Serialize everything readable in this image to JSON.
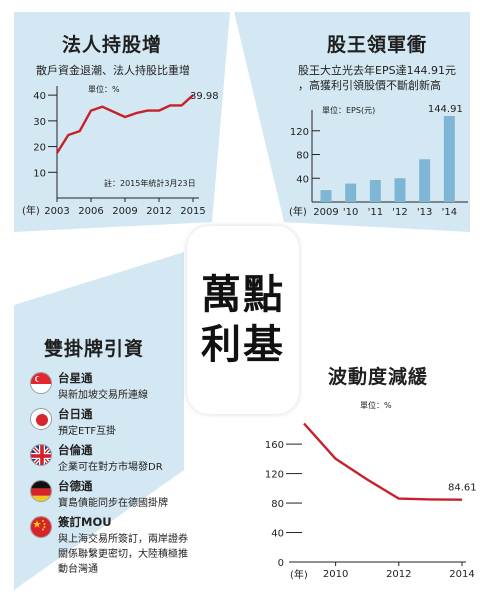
{
  "center": {
    "line1": "萬點",
    "line2": "利基"
  },
  "panel1": {
    "title": "法人持股增",
    "subtitle": "散戶資金退潮、法人持股比重增",
    "unit": "單位：%",
    "note": "註：2015年統計3月23日",
    "year_label": "(年)",
    "end_label": "39.98"
  },
  "panel2": {
    "title": "股王領軍衝",
    "subtitle_line1": "股王大立光去年EPS達144.91元",
    "subtitle_line2": "，高獲利引領股價不斷創新高",
    "unit": "單位：EPS(元)",
    "year_label": "(年)",
    "top_label": "144.91"
  },
  "panel3": {
    "title": "雙掛牌引資",
    "items": [
      {
        "flag": "singapore-flag-icon",
        "title": "台星通",
        "desc": "與新加坡交易所連線"
      },
      {
        "flag": "japan-flag-icon",
        "title": "台日通",
        "desc": "預定ETF互掛"
      },
      {
        "flag": "uk-flag-icon",
        "title": "台倫通",
        "desc": "企業可在對方市場發DR"
      },
      {
        "flag": "germany-flag-icon",
        "title": "台德通",
        "desc": "寶島債能同步在德國掛牌"
      },
      {
        "flag": "china-flag-icon",
        "title": "簽訂MOU",
        "desc": "與上海交易所簽訂，兩岸證券",
        "desc2": "關係聯繫更密切，大陸積極推",
        "desc3": "動台灣通"
      }
    ]
  },
  "panel4": {
    "title": "波動度減緩",
    "unit": "單位：%",
    "year_label": "(年)",
    "end_label": "84.61"
  },
  "colors": {
    "accent_red": "#c8202a",
    "bar_blue": "#7fb6d5",
    "bg_blue": "#d4e8f3"
  },
  "chart_data": [
    {
      "type": "line",
      "title": "法人持股增",
      "subtitle": "散戶資金退潮、法人持股比重增",
      "unit": "%",
      "x": [
        2003,
        2004,
        2005,
        2006,
        2007,
        2008,
        2009,
        2010,
        2011,
        2012,
        2013,
        2014,
        2015
      ],
      "y": [
        17.5,
        24.5,
        26,
        34,
        35.5,
        33.5,
        31.5,
        33,
        34,
        34,
        36,
        36,
        39.98
      ],
      "xticks": [
        "2003",
        "2006",
        "2009",
        "2012",
        "2015"
      ],
      "yticks": [
        "10",
        "20",
        "30",
        "40"
      ],
      "xlim": [
        2003,
        2015
      ],
      "ylim": [
        0,
        42
      ],
      "end_label": "39.98"
    },
    {
      "type": "bar",
      "title": "股王領軍衝",
      "unit": "EPS(元)",
      "categories": [
        "2009",
        "'10",
        "'11",
        "'12",
        "'13",
        "'14"
      ],
      "values": [
        20,
        31,
        37,
        40,
        72,
        144.91
      ],
      "yticks": [
        "40",
        "80",
        "120"
      ],
      "ylim": [
        0,
        155
      ],
      "top_label": "144.91"
    },
    {
      "type": "line",
      "title": "波動度減緩",
      "unit": "%",
      "x": [
        2009,
        2010,
        2011,
        2012,
        2013,
        2014
      ],
      "y": [
        188,
        140,
        112,
        86,
        85,
        84.61
      ],
      "xticks": [
        "2010",
        "2012",
        "2014"
      ],
      "yticks": [
        "0",
        "40",
        "80",
        "120",
        "160"
      ],
      "xlim": [
        2009,
        2014
      ],
      "ylim": [
        0,
        190
      ],
      "end_label": "84.61"
    }
  ]
}
